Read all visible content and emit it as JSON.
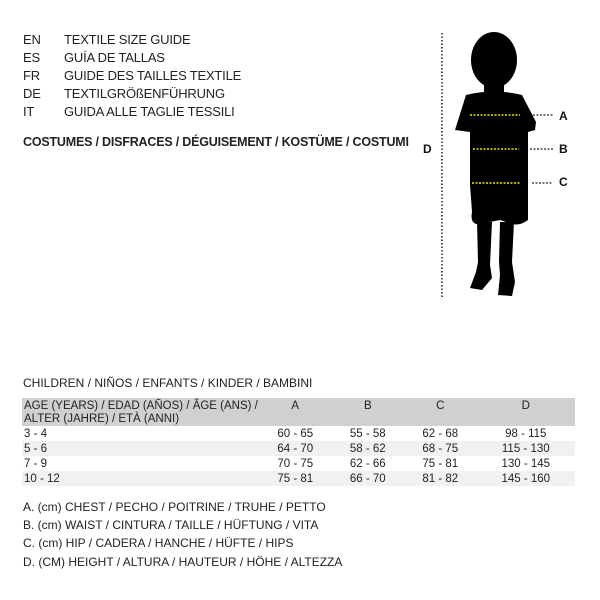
{
  "languages": [
    {
      "code": "EN",
      "text": "TEXTILE SIZE GUIDE"
    },
    {
      "code": "ES",
      "text": "GUÍA DE TALLAS"
    },
    {
      "code": "FR",
      "text": "GUIDE DES TAILLES TEXTILE"
    },
    {
      "code": "DE",
      "text": "TEXTILGRÖßENFÜHRUNG"
    },
    {
      "code": "IT",
      "text": "GUIDA ALLE TAGLIE TESSILI"
    }
  ],
  "category": "COSTUMES / DISFRACES / DÉGUISEMENT / KOSTÜME / COSTUMI",
  "figure": {
    "labels": {
      "a": "A",
      "b": "B",
      "c": "C",
      "d": "D"
    },
    "measure_line_color": "#f5e400"
  },
  "table": {
    "title": "CHILDREN / NIÑOS / ENFANTS / KINDER / BAMBINI",
    "header_line1": "AGE (YEARS) / EDAD (AÑOS) / ÂGE (ANS) /",
    "header_line2": "ALTER (JAHRE) / ETÀ (ANNI)",
    "columns": [
      "A",
      "B",
      "C",
      "D"
    ],
    "rows": [
      [
        "3 - 4",
        "60 - 65",
        "55 - 58",
        "62 - 68",
        "98 - 115"
      ],
      [
        "5 - 6",
        "64 - 70",
        "58 - 62",
        "68 - 75",
        "115 - 130"
      ],
      [
        "7 - 9",
        "70 - 75",
        "62 - 66",
        "75 - 81",
        "130 - 145"
      ],
      [
        "10 - 12",
        "75 - 81",
        "66 - 70",
        "81 - 82",
        "145 - 160"
      ]
    ]
  },
  "legend": [
    "A. (cm) CHEST / PECHO / POITRINE / TRUHE / PETTO",
    "B. (cm) WAIST / CINTURA / TAILLE / HÜFTUNG / VITA",
    "C. (cm) HIP / CADERA / HANCHE / HÜFTE / HIPS",
    "D. (CM) HEIGHT / ALTURA / HAUTEUR / HÖHE / ALTEZZA"
  ]
}
